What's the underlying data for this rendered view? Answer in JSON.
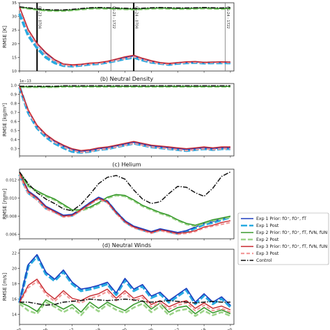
{
  "chart_data": [
    {
      "panel_title": "",
      "ylabel": "RMSE [K]",
      "type": "line",
      "ylim": [
        10,
        35
      ],
      "yticks": [
        "10",
        "15",
        "20",
        "25",
        "30",
        "35"
      ],
      "x": [
        0,
        0.5,
        1,
        1.5,
        2,
        2.5,
        3,
        3.5,
        4,
        4.5,
        5,
        5.5,
        6,
        6.5,
        7,
        7.5,
        8,
        8.5,
        9,
        9.5,
        10,
        10.5,
        11,
        11.5,
        12
      ],
      "xlim": [
        0,
        12.2
      ],
      "event_lines": [
        {
          "x": 1.0,
          "label": "06-23 - 0704"
        },
        {
          "x": 5.2,
          "label": "06-23 - 1722"
        },
        {
          "x": 6.5,
          "label": "06-24 - 0704"
        },
        {
          "x": 11.7,
          "label": "06-24 - 1722"
        }
      ],
      "series": [
        {
          "key": "exp1_prior",
          "values": [
            33.5,
            25,
            20,
            16.5,
            14,
            12.5,
            12.2,
            12.3,
            12.8,
            13,
            13.4,
            14.2,
            15,
            15.5,
            14.5,
            13.6,
            13,
            12.6,
            13,
            13.2,
            13.4,
            13.1,
            13.2,
            13.3,
            13.2
          ]
        },
        {
          "key": "exp1_post",
          "values": [
            31,
            23,
            18.5,
            15,
            13,
            12,
            11.8,
            12.1,
            12.5,
            12.7,
            13.2,
            13.8,
            14.5,
            15,
            14,
            13.2,
            12.8,
            12.4,
            12.8,
            13,
            13.1,
            12.9,
            13,
            13,
            13
          ]
        },
        {
          "key": "exp2_prior",
          "values": [
            33.5,
            33,
            32.6,
            32.3,
            32.2,
            32.2,
            32.4,
            32.7,
            33,
            33.1,
            33,
            32.9,
            32.8,
            32.7,
            32.8,
            33,
            33.1,
            33,
            32.9,
            32.9,
            33,
            33.1,
            33,
            32.9,
            33
          ]
        },
        {
          "key": "exp2_post",
          "values": [
            33.3,
            32.8,
            32.4,
            32.1,
            32,
            32,
            32.2,
            32.5,
            32.8,
            32.9,
            32.8,
            32.7,
            32.6,
            32.5,
            32.6,
            32.8,
            32.9,
            32.8,
            32.7,
            32.7,
            32.8,
            32.9,
            32.8,
            32.7,
            32.8
          ]
        },
        {
          "key": "exp3_prior",
          "values": [
            33.5,
            25.2,
            20.2,
            16.8,
            14.2,
            12.6,
            12.3,
            12.5,
            12.9,
            13.1,
            13.6,
            14.4,
            15.2,
            15.8,
            14.7,
            13.8,
            13.1,
            12.8,
            13.1,
            13.4,
            13.5,
            13.2,
            13.3,
            13.4,
            13.3
          ]
        },
        {
          "key": "exp3_post",
          "values": [
            33,
            24.5,
            19.5,
            16,
            13.6,
            12.2,
            11.9,
            12.2,
            12.6,
            12.8,
            13.3,
            13.9,
            14.6,
            15.2,
            14.2,
            13.3,
            12.8,
            12.5,
            12.9,
            13.1,
            13.2,
            13,
            13.1,
            13.1,
            13.1
          ]
        },
        {
          "key": "control",
          "values": [
            33.5,
            33.2,
            32.8,
            32.5,
            32.4,
            32.4,
            32.6,
            32.9,
            33.2,
            33.3,
            33.2,
            33.1,
            33,
            32.9,
            33,
            33.2,
            33.3,
            33.2,
            33.1,
            33.1,
            33.2,
            33.3,
            33.2,
            33.1,
            33.2
          ]
        }
      ]
    },
    {
      "panel_title": "(b) Neutral Density",
      "ylabel": "RMSE [kg/m³]",
      "exponent_label": "1e−13",
      "type": "line",
      "ylim": [
        0.22,
        1.02
      ],
      "yticks": [
        "0.3",
        "0.4",
        "0.5",
        "0.6",
        "0.7",
        "0.8",
        "0.9",
        "1.0"
      ],
      "x": [
        0,
        0.5,
        1,
        1.5,
        2,
        2.5,
        3,
        3.5,
        4,
        4.5,
        5,
        5.5,
        6,
        6.5,
        7,
        7.5,
        8,
        8.5,
        9,
        9.5,
        10,
        10.5,
        11,
        11.5,
        12
      ],
      "xlim": [
        0,
        12.2
      ],
      "series": [
        {
          "key": "exp1_prior",
          "values": [
            0.99,
            0.72,
            0.55,
            0.45,
            0.38,
            0.33,
            0.29,
            0.27,
            0.28,
            0.3,
            0.31,
            0.33,
            0.35,
            0.37,
            0.35,
            0.33,
            0.32,
            0.31,
            0.3,
            0.29,
            0.3,
            0.31,
            0.3,
            0.31,
            0.31
          ]
        },
        {
          "key": "exp1_post",
          "values": [
            0.98,
            0.7,
            0.53,
            0.43,
            0.36,
            0.31,
            0.27,
            0.26,
            0.27,
            0.29,
            0.3,
            0.32,
            0.34,
            0.36,
            0.34,
            0.32,
            0.31,
            0.3,
            0.29,
            0.28,
            0.29,
            0.3,
            0.29,
            0.3,
            0.3
          ]
        },
        {
          "key": "exp2_prior",
          "values": [
            0.985,
            0.985,
            0.985,
            0.985,
            0.985,
            0.99,
            0.99,
            0.99,
            0.99,
            0.99,
            0.99,
            0.99,
            0.99,
            0.99,
            0.99,
            0.99,
            0.99,
            0.99,
            0.99,
            0.99,
            0.99,
            0.99,
            0.99,
            0.99,
            0.99
          ]
        },
        {
          "key": "exp2_post",
          "values": [
            0.98,
            0.98,
            0.98,
            0.98,
            0.98,
            0.985,
            0.985,
            0.985,
            0.985,
            0.985,
            0.985,
            0.985,
            0.985,
            0.985,
            0.985,
            0.985,
            0.985,
            0.985,
            0.985,
            0.985,
            0.985,
            0.985,
            0.985,
            0.985,
            0.985
          ]
        },
        {
          "key": "exp3_prior",
          "values": [
            0.99,
            0.73,
            0.56,
            0.46,
            0.39,
            0.34,
            0.3,
            0.28,
            0.29,
            0.31,
            0.32,
            0.34,
            0.36,
            0.38,
            0.36,
            0.34,
            0.33,
            0.32,
            0.31,
            0.3,
            0.31,
            0.32,
            0.31,
            0.32,
            0.32
          ]
        },
        {
          "key": "exp3_post",
          "values": [
            0.98,
            0.71,
            0.54,
            0.44,
            0.37,
            0.32,
            0.28,
            0.26,
            0.27,
            0.29,
            0.3,
            0.32,
            0.34,
            0.36,
            0.34,
            0.32,
            0.31,
            0.3,
            0.29,
            0.28,
            0.29,
            0.3,
            0.29,
            0.3,
            0.3
          ]
        },
        {
          "key": "control",
          "values": [
            0.99,
            0.99,
            0.99,
            0.99,
            0.99,
            0.995,
            0.995,
            0.995,
            0.995,
            0.995,
            0.995,
            0.995,
            0.995,
            0.995,
            0.995,
            0.995,
            0.995,
            0.995,
            0.995,
            0.995,
            0.995,
            0.995,
            0.995,
            0.995,
            0.995
          ]
        }
      ]
    },
    {
      "panel_title": "(c) Helium",
      "ylabel": "RMSE [mmr]",
      "type": "line",
      "ylim": [
        0.0055,
        0.0132
      ],
      "yticks": [
        "0.006",
        "0.008",
        "0.010",
        "0.012"
      ],
      "x": [
        0,
        0.5,
        1,
        1.5,
        2,
        2.5,
        3,
        3.5,
        4,
        4.5,
        5,
        5.5,
        6,
        6.5,
        7,
        7.5,
        8,
        8.5,
        9,
        9.5,
        10,
        10.5,
        11,
        11.5,
        12
      ],
      "xlim": [
        0,
        12.2
      ],
      "series": [
        {
          "key": "exp1_prior",
          "values": [
            0.0129,
            0.0108,
            0.0101,
            0.0091,
            0.0086,
            0.0081,
            0.0082,
            0.0088,
            0.0095,
            0.0101,
            0.0097,
            0.0085,
            0.0075,
            0.0069,
            0.0066,
            0.0063,
            0.0066,
            0.0064,
            0.0062,
            0.0064,
            0.0068,
            0.0072,
            0.0074,
            0.0077,
            0.008
          ]
        },
        {
          "key": "exp1_post",
          "values": [
            0.0126,
            0.0106,
            0.0099,
            0.0089,
            0.0085,
            0.008,
            0.0081,
            0.0087,
            0.0094,
            0.01,
            0.0096,
            0.0084,
            0.0074,
            0.0068,
            0.0065,
            0.0062,
            0.0065,
            0.0063,
            0.0061,
            0.0063,
            0.0067,
            0.0071,
            0.0073,
            0.0076,
            0.0079
          ]
        },
        {
          "key": "exp2_prior",
          "values": [
            0.0129,
            0.0114,
            0.0108,
            0.0103,
            0.0099,
            0.0093,
            0.0087,
            0.0087,
            0.009,
            0.0095,
            0.0101,
            0.0104,
            0.0103,
            0.0098,
            0.0092,
            0.0088,
            0.0084,
            0.0081,
            0.0076,
            0.0072,
            0.007,
            0.0073,
            0.0076,
            0.0078,
            0.008
          ]
        },
        {
          "key": "exp2_post",
          "values": [
            0.0127,
            0.0113,
            0.0107,
            0.0102,
            0.0098,
            0.0092,
            0.0086,
            0.0086,
            0.0089,
            0.0094,
            0.01,
            0.0103,
            0.0102,
            0.0097,
            0.0091,
            0.0087,
            0.0083,
            0.008,
            0.0075,
            0.0071,
            0.0069,
            0.0072,
            0.0075,
            0.0077,
            0.0079
          ]
        },
        {
          "key": "exp3_prior",
          "values": [
            0.0128,
            0.0107,
            0.01,
            0.009,
            0.0085,
            0.008,
            0.0081,
            0.0087,
            0.0094,
            0.01,
            0.0096,
            0.0084,
            0.0074,
            0.0068,
            0.0065,
            0.0062,
            0.0065,
            0.0063,
            0.0061,
            0.0062,
            0.0064,
            0.0068,
            0.007,
            0.0073,
            0.0075
          ]
        },
        {
          "key": "exp3_post",
          "values": [
            0.0125,
            0.0105,
            0.0098,
            0.0088,
            0.0084,
            0.0079,
            0.008,
            0.0086,
            0.0093,
            0.0099,
            0.0095,
            0.0083,
            0.0073,
            0.0067,
            0.0064,
            0.0061,
            0.0064,
            0.0062,
            0.006,
            0.0061,
            0.0063,
            0.0067,
            0.0069,
            0.0071,
            0.0073
          ]
        },
        {
          "key": "control",
          "values": [
            0.0129,
            0.0116,
            0.0106,
            0.0099,
            0.0094,
            0.0088,
            0.0086,
            0.0093,
            0.0104,
            0.0116,
            0.0123,
            0.0125,
            0.0121,
            0.0109,
            0.0099,
            0.0094,
            0.0096,
            0.0105,
            0.0113,
            0.0112,
            0.0106,
            0.0102,
            0.0111,
            0.0124,
            0.0129
          ]
        }
      ]
    },
    {
      "panel_title": "(d) Neutral Winds",
      "ylabel": "RMSE [m/s]",
      "type": "line",
      "ylim": [
        12.7,
        22.5
      ],
      "yticks": [
        "14",
        "16",
        "18",
        "20",
        "22"
      ],
      "xticklabels": [
        "00",
        "06",
        "12",
        "18",
        "00",
        "06",
        "12",
        "18",
        "00"
      ],
      "xtick_positions": [
        0,
        1.5,
        3,
        4.5,
        6,
        7.5,
        9,
        10.5,
        12
      ],
      "x": [
        0,
        0.5,
        1,
        1.5,
        2,
        2.5,
        3,
        3.5,
        4,
        4.5,
        5,
        5.5,
        6,
        6.5,
        7,
        7.5,
        8,
        8.5,
        9,
        9.5,
        10,
        10.5,
        11,
        11.5,
        12
      ],
      "xlim": [
        0,
        12.2
      ],
      "series": [
        {
          "key": "exp1_prior",
          "values": [
            15.6,
            20.5,
            21.8,
            19.5,
            18.6,
            19.8,
            18.2,
            17.3,
            17.5,
            17.8,
            18.2,
            16.8,
            18.7,
            17.3,
            17.9,
            16.4,
            16.9,
            15.8,
            16.6,
            17.4,
            15.6,
            16.7,
            15.6,
            16.3,
            15.2
          ]
        },
        {
          "key": "exp1_post",
          "values": [
            15.5,
            20.3,
            21.6,
            19.3,
            18.4,
            19.6,
            18,
            17.1,
            17.3,
            17.6,
            18,
            16.6,
            18.5,
            17.1,
            17.7,
            16.2,
            16.7,
            15.6,
            16.4,
            17.2,
            15.4,
            16.5,
            15.4,
            16.1,
            15
          ]
        },
        {
          "key": "exp2_prior",
          "values": [
            15.6,
            15.1,
            14.4,
            15.9,
            15.3,
            14.7,
            15.3,
            14.3,
            15.6,
            14.8,
            15.6,
            15,
            14.5,
            15.3,
            15.8,
            14.7,
            15.5,
            14.3,
            14.9,
            15.1,
            14.1,
            14.9,
            14.2,
            14.6,
            14.1
          ]
        },
        {
          "key": "exp2_post",
          "values": [
            15.4,
            14.5,
            14.1,
            15.6,
            15,
            14.3,
            14.9,
            13.9,
            15.2,
            14.4,
            15.3,
            14.6,
            14.2,
            14.9,
            15.4,
            14.3,
            15.1,
            13.9,
            14.5,
            14.7,
            13.8,
            14.5,
            13.9,
            14.3,
            13.8
          ]
        },
        {
          "key": "exp3_prior",
          "values": [
            15.6,
            17.8,
            18.6,
            16.9,
            16,
            17.1,
            16.1,
            15.8,
            16.4,
            16.7,
            17.3,
            16.1,
            17.1,
            16.1,
            16.5,
            15.3,
            15.8,
            15,
            15.5,
            15.8,
            14.8,
            15.5,
            14.8,
            15.1,
            14.6
          ]
        },
        {
          "key": "exp3_post",
          "values": [
            15.5,
            17.5,
            18.3,
            16.6,
            15.7,
            16.8,
            15.8,
            15.5,
            16.1,
            16.4,
            17,
            15.8,
            16.8,
            15.8,
            16.2,
            15,
            15.5,
            14.7,
            15.2,
            15.5,
            14.5,
            15.2,
            14.5,
            14.8,
            14.3
          ]
        },
        {
          "key": "control",
          "values": [
            15.6,
            15.6,
            15.4,
            15.2,
            15.3,
            15.6,
            15.7,
            15.8,
            16,
            15.9,
            15.8,
            15.9,
            16,
            15.9,
            15.7,
            15.6,
            15.7,
            15.8,
            15.7,
            15.6,
            15.5,
            15.6,
            15.7,
            15.6,
            15.6
          ]
        }
      ]
    }
  ],
  "legend": {
    "entries": [
      {
        "key": "exp1_prior",
        "label": "Exp 1 Prior: fO⁺, fO⁺, fT"
      },
      {
        "key": "exp1_post",
        "label": "Exp 1 Post"
      },
      {
        "key": "exp2_prior",
        "label": "Exp 2 Prior: fO⁺, fO⁺, fT, fVN, fUN"
      },
      {
        "key": "exp2_post",
        "label": "Exp 2 Post"
      },
      {
        "key": "exp3_prior",
        "label": "Exp 3 Prior: fO⁺, fO⁺, fT, fVN, fUN"
      },
      {
        "key": "exp3_post",
        "label": "Exp 3 Post"
      },
      {
        "key": "control",
        "label": "Control"
      }
    ]
  },
  "series_styles": {
    "exp1_prior": {
      "color": "#1f3fbf",
      "dash": "",
      "width": 1.6
    },
    "exp1_post": {
      "color": "#27aae1",
      "dash": "9 3",
      "width": 4
    },
    "exp2_prior": {
      "color": "#3a9a2e",
      "dash": "",
      "width": 1.6
    },
    "exp2_post": {
      "color": "#9dd48a",
      "dash": "7 3",
      "width": 2.6
    },
    "exp3_prior": {
      "color": "#c8282e",
      "dash": "",
      "width": 1.4
    },
    "exp3_post": {
      "color": "#f29a9a",
      "dash": "5 3",
      "width": 2.2
    },
    "control": {
      "color": "#111111",
      "dash": "7 2 1.5 2",
      "width": 1.5
    }
  }
}
